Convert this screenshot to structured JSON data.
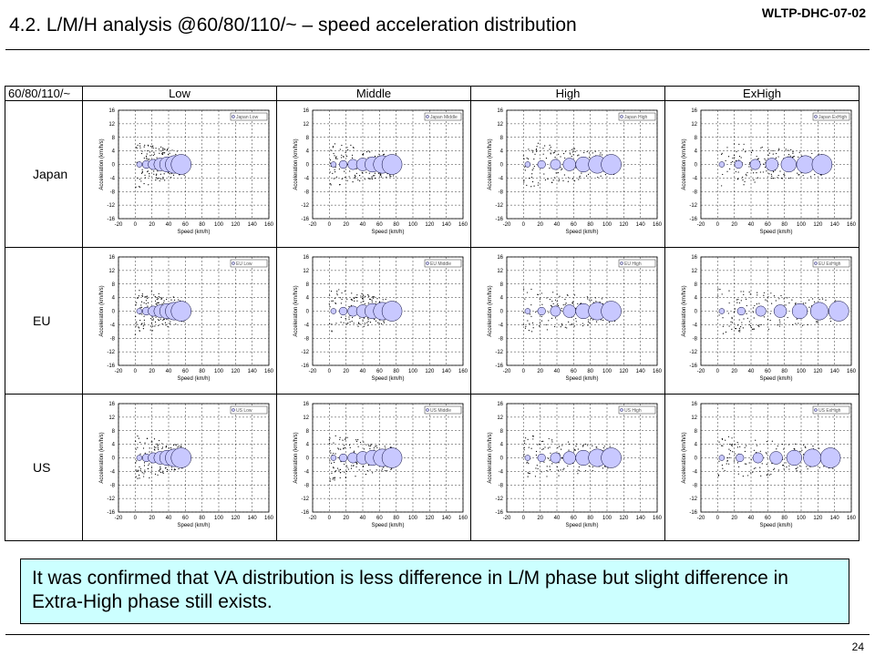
{
  "header": {
    "doc_id": "WLTP-DHC-07-02",
    "title": "4.2. L/M/H analysis @60/80/110/~ – speed acceleration distribution"
  },
  "table": {
    "corner_label": "60/80/110/~",
    "columns": [
      "Low",
      "Middle",
      "High",
      "ExHigh"
    ],
    "rows": [
      "Japan",
      "EU",
      "US"
    ]
  },
  "colors": {
    "bubble_fill": "#c8c8ff",
    "bubble_stroke": "#000033",
    "plot_border": "#000000",
    "conclusion_bg": "#ccffff"
  },
  "chart_data": {
    "type": "scatter",
    "description_of_marks": "bubble",
    "x_axis": {
      "label": "Speed (km/h)",
      "range": [
        -20,
        160
      ],
      "ticks": [
        -20,
        0,
        20,
        40,
        60,
        80,
        100,
        120,
        140,
        160
      ]
    },
    "y_axis": {
      "label": "Acceleration (km/h/s)",
      "range": [
        -16,
        16
      ],
      "ticks": [
        16,
        12,
        8,
        4,
        0,
        -4,
        -8,
        -12,
        -16
      ]
    },
    "grid": true,
    "legend_position": "top-right",
    "panels": [
      {
        "row": "Japan",
        "col": "Low",
        "legend": "Japan Low",
        "speed_range": [
          0,
          60
        ]
      },
      {
        "row": "Japan",
        "col": "Middle",
        "legend": "Japan Middle",
        "speed_range": [
          0,
          80
        ]
      },
      {
        "row": "Japan",
        "col": "High",
        "legend": "Japan High",
        "speed_range": [
          0,
          110
        ]
      },
      {
        "row": "Japan",
        "col": "ExHigh",
        "legend": "Japan ExHigh",
        "speed_range": [
          0,
          130
        ]
      },
      {
        "row": "EU",
        "col": "Low",
        "legend": "EU Low",
        "speed_range": [
          0,
          60
        ]
      },
      {
        "row": "EU",
        "col": "Middle",
        "legend": "EU Middle",
        "speed_range": [
          0,
          80
        ]
      },
      {
        "row": "EU",
        "col": "High",
        "legend": "EU High",
        "speed_range": [
          0,
          110
        ]
      },
      {
        "row": "EU",
        "col": "ExHigh",
        "legend": "EU ExHigh",
        "speed_range": [
          0,
          150
        ]
      },
      {
        "row": "US",
        "col": "Low",
        "legend": "US Low",
        "speed_range": [
          0,
          60
        ]
      },
      {
        "row": "US",
        "col": "Middle",
        "legend": "US Middle",
        "speed_range": [
          0,
          80
        ]
      },
      {
        "row": "US",
        "col": "High",
        "legend": "US High",
        "speed_range": [
          0,
          110
        ]
      },
      {
        "row": "US",
        "col": "ExHigh",
        "legend": "US ExHigh",
        "speed_range": [
          0,
          140
        ]
      }
    ]
  },
  "conclusion": {
    "text": "It was confirmed that VA distribution is less difference in L/M phase but slight difference in Extra-High phase still exists."
  },
  "footer": {
    "page_number": "24"
  }
}
